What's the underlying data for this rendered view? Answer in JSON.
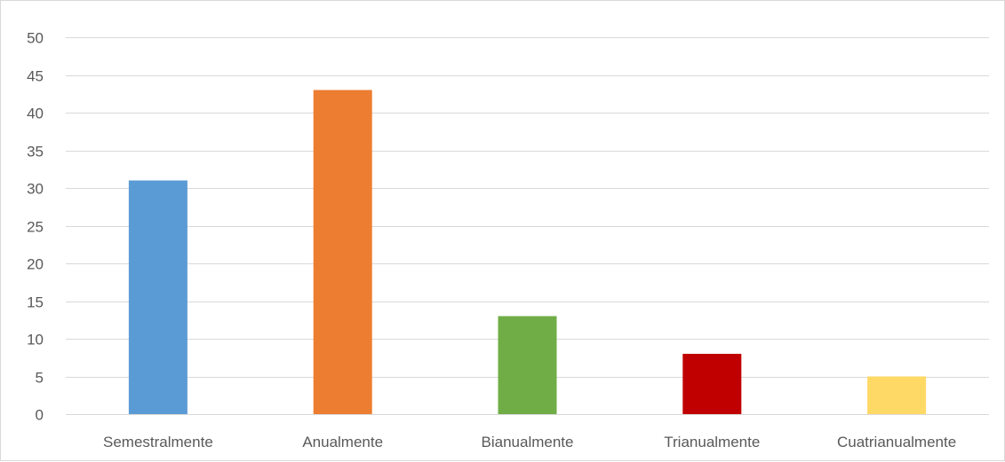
{
  "chart_data": {
    "type": "bar",
    "title": "",
    "xlabel": "",
    "ylabel": "",
    "categories": [
      "Semestralmente",
      "Anualmente",
      "Bianualmente",
      "Trianualmente",
      "Cuatrianualmente"
    ],
    "values": [
      31,
      43,
      13,
      8,
      5
    ],
    "colors": [
      "#5b9bd5",
      "#ed7d31",
      "#70ad47",
      "#c00000",
      "#ffd966"
    ],
    "ylim": [
      0,
      50
    ],
    "yticks": [
      0,
      5,
      10,
      15,
      20,
      25,
      30,
      35,
      40,
      45,
      50
    ],
    "grid": true,
    "legend": "none"
  }
}
